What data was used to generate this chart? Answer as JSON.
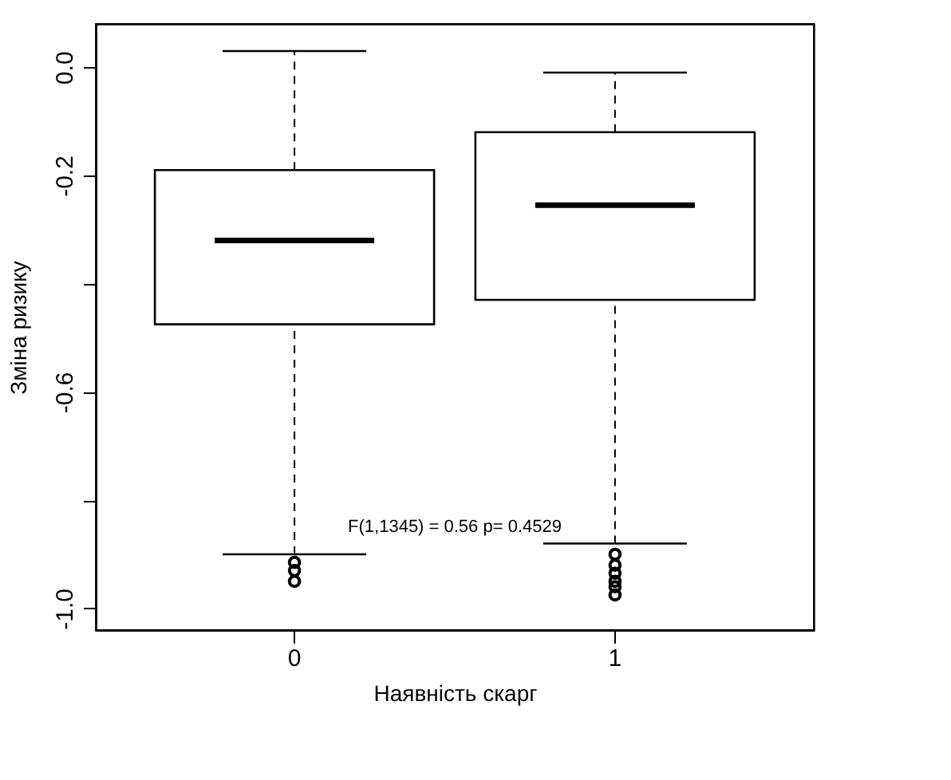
{
  "chart_data": {
    "type": "box",
    "xlabel": "Наявність скарг",
    "ylabel": "Зміна ризику",
    "categories": [
      "0",
      "1"
    ],
    "boxes": [
      {
        "low": -0.9,
        "q1": -0.475,
        "median": -0.32,
        "q3": -0.19,
        "high": 0.03,
        "outliers": [
          -0.915,
          -0.93,
          -0.95
        ]
      },
      {
        "low": -0.88,
        "q1": -0.43,
        "median": -0.255,
        "q3": -0.12,
        "high": -0.01,
        "outliers": [
          -0.9,
          -0.92,
          -0.935,
          -0.95,
          -0.96,
          -0.975
        ]
      }
    ],
    "ylim": [
      -1.04,
      0.08
    ],
    "yticks": [
      {
        "value": 0,
        "label": "0.0"
      },
      {
        "value": -0.2,
        "label": "-0.2"
      },
      {
        "value": -0.4,
        "label": null
      },
      {
        "value": -0.6,
        "label": "-0.6"
      },
      {
        "value": -0.8,
        "label": null
      },
      {
        "value": -1.0,
        "label": "-1.0"
      }
    ],
    "annotations": [
      "F(1,1345) = 0.56 p= 0.4529"
    ]
  }
}
